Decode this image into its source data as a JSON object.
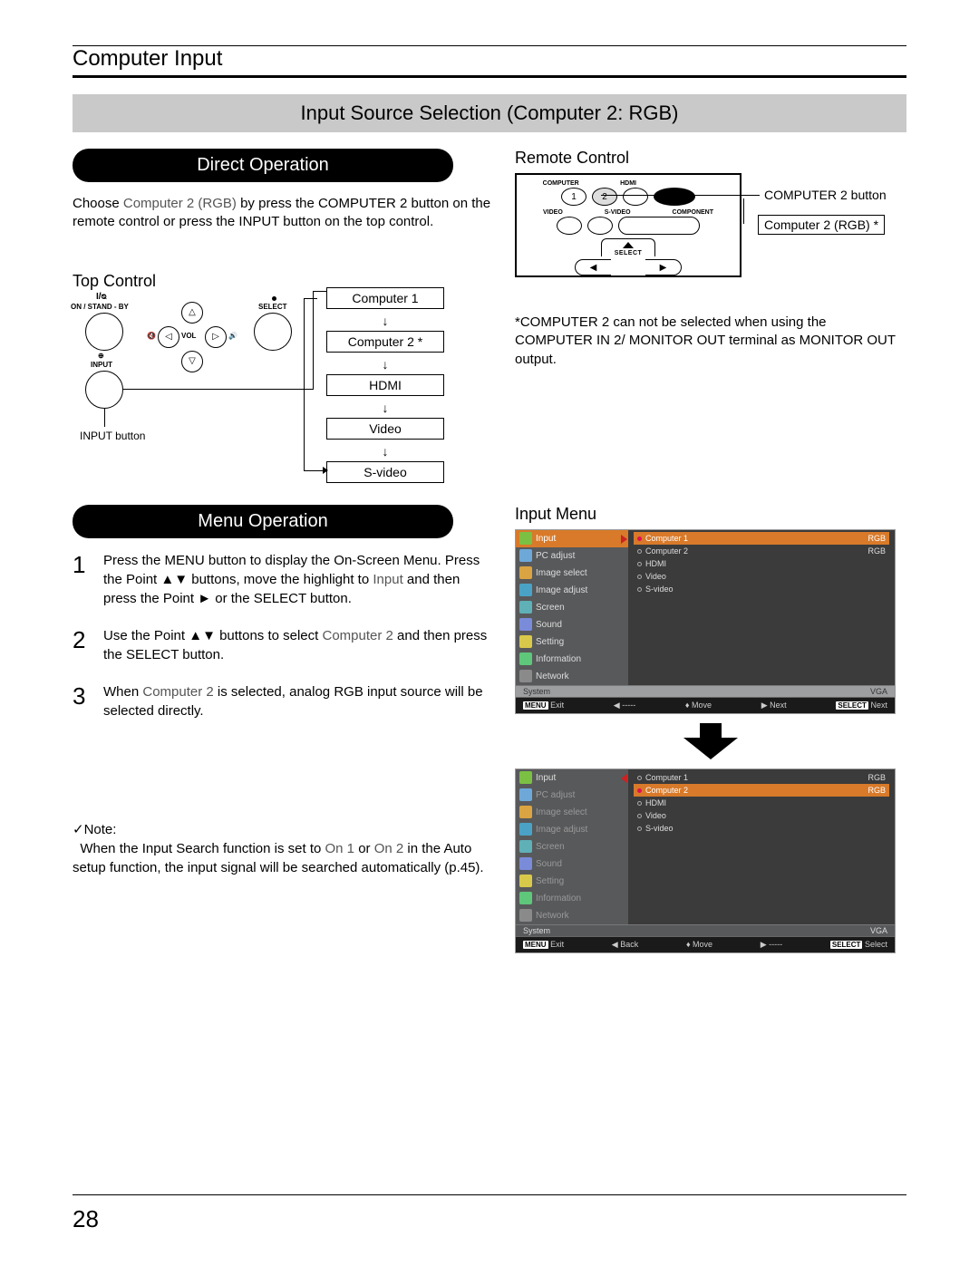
{
  "header": "Computer Input",
  "titleBar": "Input Source Selection (Computer 2: RGB)",
  "pill1": "Direct Operation",
  "pill2": "Menu Operation",
  "directText_a": "Choose ",
  "directText_b": "Computer 2 (RGB)",
  "directText_c": " by press the COMPUTER 2 button on the remote control or press the INPUT button on the top control.",
  "remoteLabel": "Remote Control",
  "remote": {
    "computer": "COMPUTER",
    "hdmi": "HDMI",
    "b1": "1",
    "b2": "2",
    "video": "VIDEO",
    "svideo": "S-VIDEO",
    "component": "COMPONENT",
    "select": "SELECT",
    "callout1": "COMPUTER 2 button",
    "callout2": "Computer 2 (RGB)  *"
  },
  "topLabel": "Top Control",
  "topControl": {
    "standby": "ON / STAND - BY",
    "select": "SELECT",
    "input": "INPUT",
    "vol": "VOL",
    "inputBtn": "INPUT button"
  },
  "flow": {
    "c1": "Computer 1",
    "c2": "Computer 2 *",
    "hdmi": "HDMI",
    "video": "Video",
    "svideo": "S-video"
  },
  "footnote": "*COMPUTER 2 can not be selected when using the COMPUTER IN 2/ MONITOR OUT terminal as MONITOR OUT output.",
  "steps": {
    "s1a": "Press the MENU button to display the On-Screen Menu. Press the Point ▲▼ buttons, move the highlight to ",
    "s1b": "Input",
    "s1c": "  and then press the Point ► or the SELECT button.",
    "s2a": "Use the Point ▲▼ buttons to select ",
    "s2b": "Computer 2",
    "s2c": " and then press the SELECT button.",
    "s3a": "When ",
    "s3b": "Computer 2",
    "s3c": " is selected, analog RGB input source will be selected directly."
  },
  "noteLabel": "Note:",
  "noteText_a": "When the Input Search function is set to ",
  "noteText_b": "On 1",
  "noteText_c": " or ",
  "noteText_d": "On 2",
  "noteText_e": " in the Auto setup function, the input signal will be searched automatically (p.45).",
  "inputMenuLabel": "Input Menu",
  "menu": {
    "side": [
      "Input",
      "PC adjust",
      "Image select",
      "Image adjust",
      "Screen",
      "Sound",
      "Setting",
      "Information",
      "Network"
    ],
    "opts1": [
      {
        "label": "Computer 1",
        "right": "RGB",
        "sel": true
      },
      {
        "label": "Computer 2",
        "right": "RGB",
        "sel": false
      },
      {
        "label": "HDMI",
        "right": "",
        "sel": false
      },
      {
        "label": "Video",
        "right": "",
        "sel": false
      },
      {
        "label": "S-video",
        "right": "",
        "sel": false
      }
    ],
    "opts2": [
      {
        "label": "Computer 1",
        "right": "RGB",
        "sel": false
      },
      {
        "label": "Computer 2",
        "right": "RGB",
        "sel": true
      },
      {
        "label": "HDMI",
        "right": "",
        "sel": false
      },
      {
        "label": "Video",
        "right": "",
        "sel": false
      },
      {
        "label": "S-video",
        "right": "",
        "sel": false
      }
    ],
    "system": "System",
    "vga": "VGA",
    "foot1": {
      "exit": "Exit",
      "b": "-----",
      "move": "Move",
      "next": "Next",
      "sel": "Next",
      "menuBadge": "MENU",
      "selBadge": "SELECT"
    },
    "foot2": {
      "exit": "Exit",
      "b": "Back",
      "move": "Move",
      "next": "-----",
      "sel": "Select",
      "menuBadge": "MENU",
      "selBadge": "SELECT"
    },
    "iconColors": [
      "#7bc043",
      "#6ea8d9",
      "#d9a441",
      "#4aa3c7",
      "#5fb0b7",
      "#7a8bd9",
      "#d9c94a",
      "#5fc77a",
      "#8a8a8a"
    ]
  },
  "pageNumber": "28"
}
